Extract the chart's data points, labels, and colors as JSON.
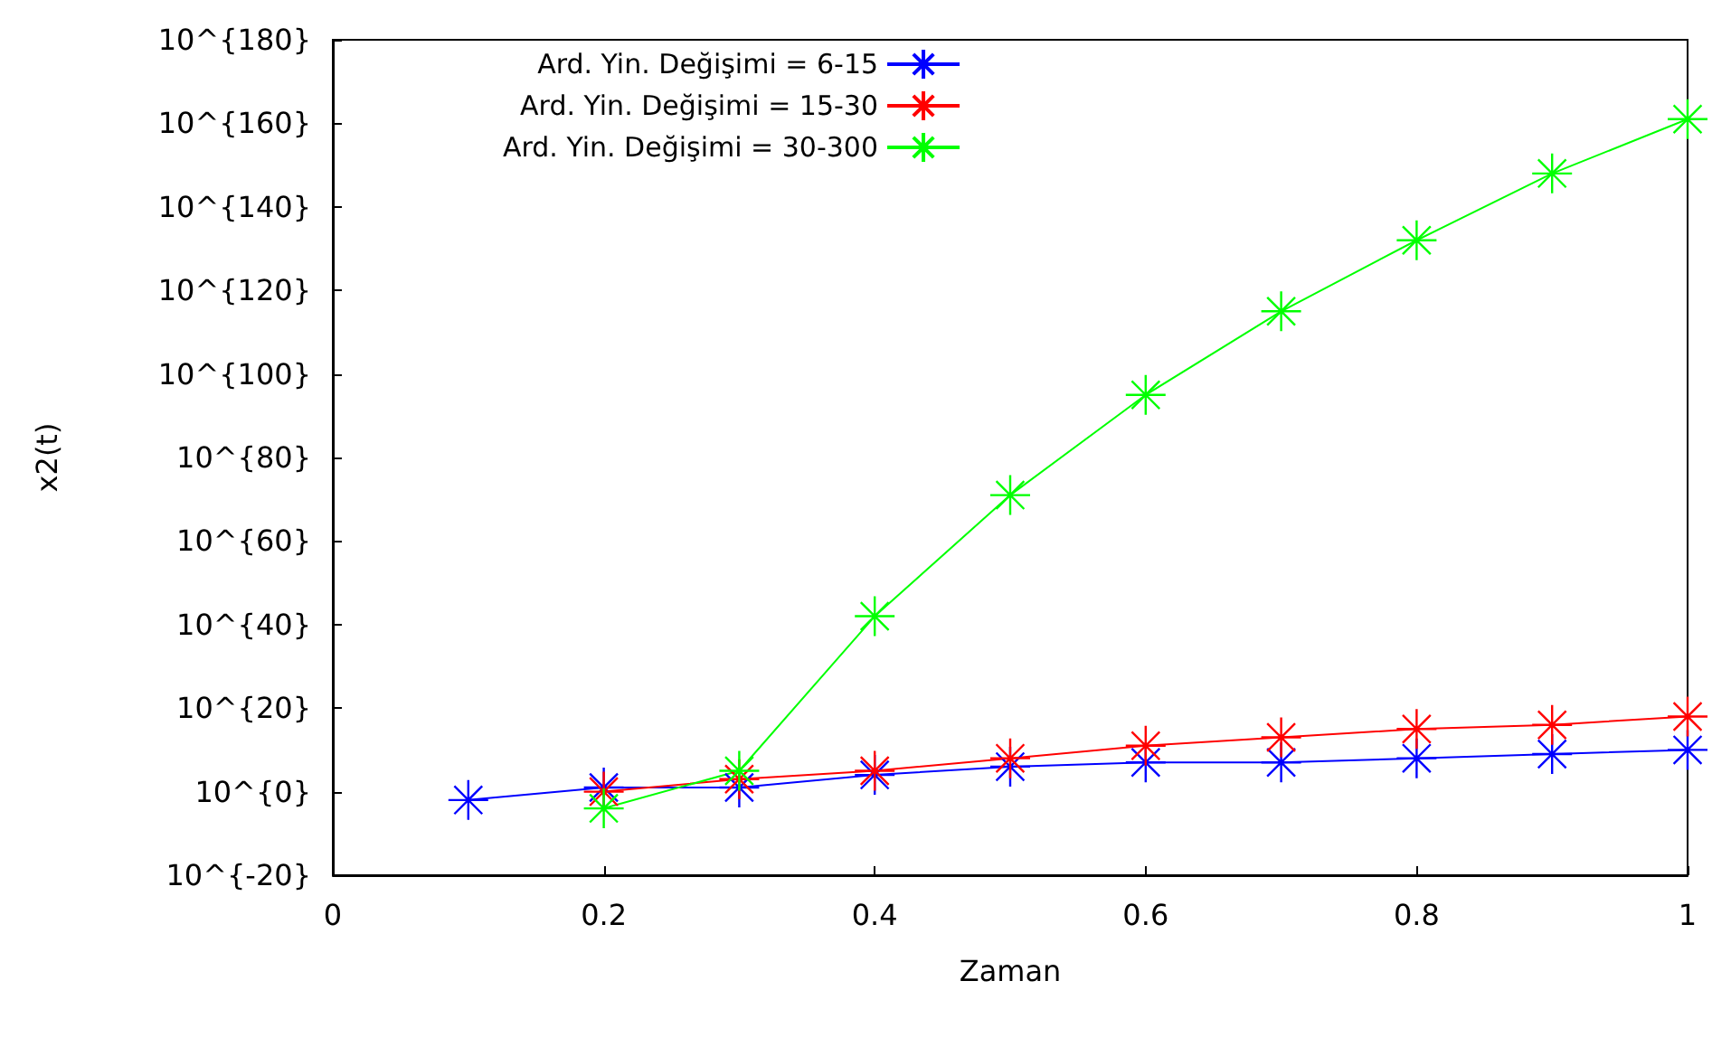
{
  "chart_data": {
    "type": "line",
    "xlabel": "Zaman",
    "ylabel": "x2(t)",
    "log": "y",
    "grid": false,
    "legend": "top left",
    "marker": "cross",
    "line_style": "solid",
    "xlim": [
      0,
      1
    ],
    "xticks": [
      0,
      0.2,
      0.4,
      0.6,
      0.8,
      1
    ],
    "ylim": [
      1e-20,
      1e+180
    ],
    "yticks": [
      {
        "value": 1e-20,
        "label": "10^{-20}"
      },
      {
        "value": 1,
        "label": "10^{0}"
      },
      {
        "value": 1e+20,
        "label": "10^{20}"
      },
      {
        "value": 1e+40,
        "label": "10^{40}"
      },
      {
        "value": 1e+60,
        "label": "10^{60}"
      },
      {
        "value": 1e+80,
        "label": "10^{80}"
      },
      {
        "value": 1e+100,
        "label": "10^{100}"
      },
      {
        "value": 1e+120,
        "label": "10^{120}"
      },
      {
        "value": 1e+140,
        "label": "10^{140}"
      },
      {
        "value": 1e+160,
        "label": "10^{160}"
      },
      {
        "value": 1e+180,
        "label": "10^{180}"
      }
    ],
    "series": [
      {
        "name": "Ard. Yin. Değişimi = 6-15",
        "color": "#0000ff",
        "x": [
          0.1,
          0.2,
          0.3,
          0.4,
          0.5,
          0.6,
          0.7,
          0.8,
          0.9,
          1
        ],
        "values": [
          0.01,
          10.0,
          10.0,
          10000.0,
          1000000.0,
          10000000.0,
          10000000.0,
          100000000.0,
          1000000000.0,
          10000000000.0
        ]
      },
      {
        "name": "Ard. Yin. Değişimi = 15-30",
        "color": "#ff0000",
        "x": [
          0.2,
          0.3,
          0.4,
          0.5,
          0.6,
          0.7,
          0.8,
          0.9,
          1
        ],
        "values": [
          1,
          1000.0,
          100000.0,
          100000000.0,
          100000000000.0,
          10000000000000.0,
          1000000000000000.0,
          1e+16,
          1e+18
        ]
      },
      {
        "name": "Ard. Yin. Değişimi = 30-300",
        "color": "#00ff00",
        "x": [
          0.2,
          0.3,
          0.4,
          0.5,
          0.6,
          0.7,
          0.8,
          0.9,
          1
        ],
        "values": [
          0.0001,
          100000.0,
          1e+42,
          1e+71,
          1e+95,
          1e+115,
          1e+132,
          1e+148,
          1e+161
        ]
      }
    ]
  }
}
